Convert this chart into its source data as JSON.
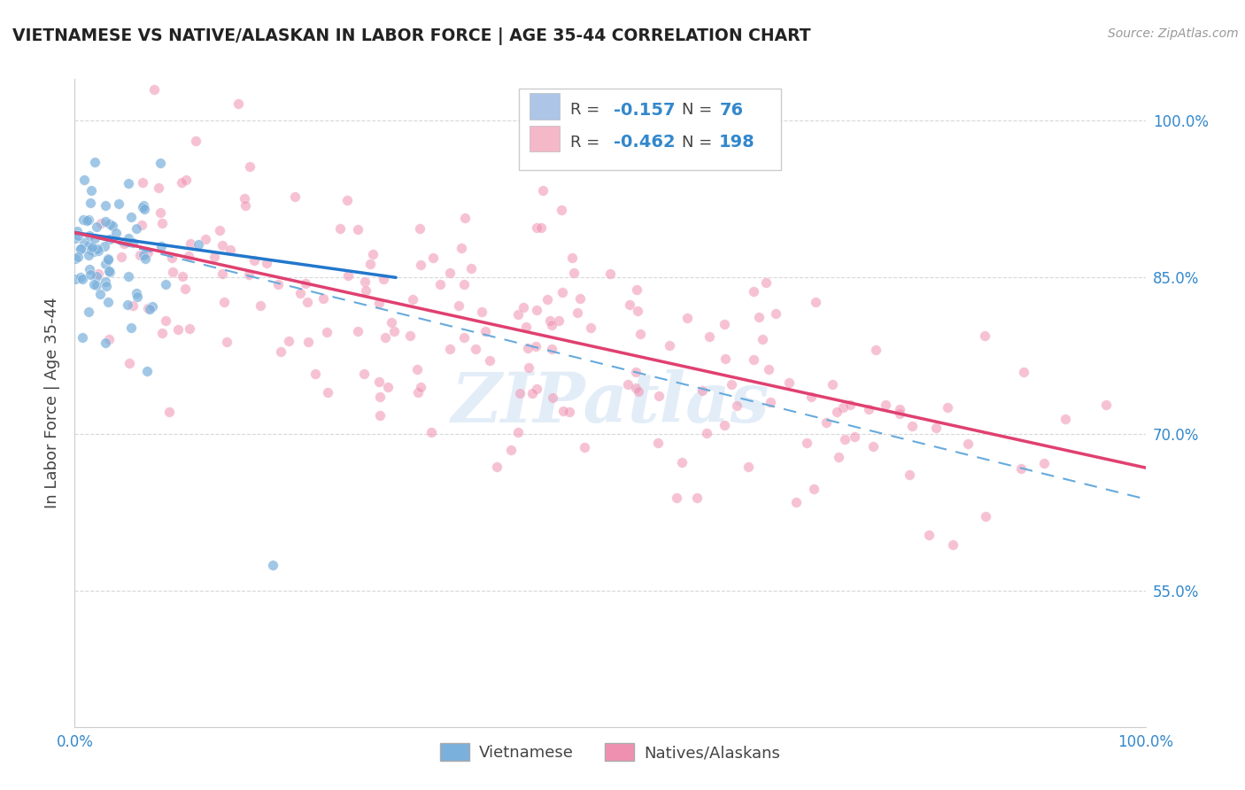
{
  "title": "VIETNAMESE VS NATIVE/ALASKAN IN LABOR FORCE | AGE 35-44 CORRELATION CHART",
  "source": "Source: ZipAtlas.com",
  "ylabel": "In Labor Force | Age 35-44",
  "ytick_labels": [
    "55.0%",
    "70.0%",
    "85.0%",
    "100.0%"
  ],
  "ytick_values": [
    0.55,
    0.7,
    0.85,
    1.0
  ],
  "xlim": [
    0.0,
    1.0
  ],
  "ylim": [
    0.42,
    1.04
  ],
  "legend_entries": [
    {
      "label": "Vietnamese",
      "R": "-0.157",
      "N": "76",
      "color": "#adc6e8"
    },
    {
      "label": "Natives/Alaskans",
      "R": "-0.462",
      "N": "198",
      "color": "#f4b8c8"
    }
  ],
  "blue_line_x": [
    0.0,
    0.3
  ],
  "blue_line_y": [
    0.893,
    0.85
  ],
  "pink_line_x": [
    0.0,
    1.0
  ],
  "pink_line_y": [
    0.893,
    0.668
  ],
  "dashed_line_x": [
    0.0,
    1.0
  ],
  "dashed_line_y": [
    0.893,
    0.638
  ],
  "blue_scatter_color": "#7ab0dc",
  "pink_scatter_color": "#f090b0",
  "watermark": "ZIPatlas",
  "background_color": "#ffffff",
  "grid_color": "#d8d8d8",
  "title_color": "#222222",
  "source_color": "#999999",
  "tick_color": "#3388cc",
  "ylabel_color": "#444444"
}
